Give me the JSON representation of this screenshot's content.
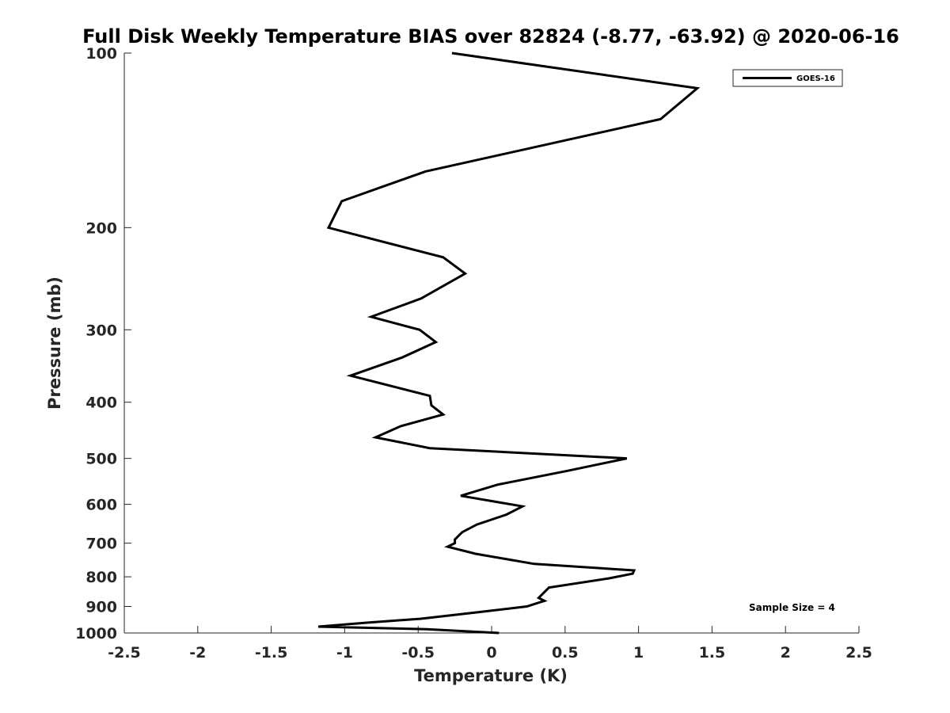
{
  "chart_data": {
    "type": "line",
    "title": "Full Disk Weekly Temperature BIAS over 82824 (-8.77, -63.92) @ 2020-06-16",
    "xlabel": "Temperature (K)",
    "ylabel": "Pressure (mb)",
    "xlim": [
      -2.5,
      2.5
    ],
    "ylim": [
      100,
      1000
    ],
    "y_scale": "log",
    "y_reversed": true,
    "x_ticks": [
      -2.5,
      -2,
      -1.5,
      -1,
      -0.5,
      0,
      0.5,
      1,
      1.5,
      2,
      2.5
    ],
    "x_tick_labels": [
      "-2.5",
      "-2",
      "-1.5",
      "-1",
      "-0.5",
      "0",
      "0.5",
      "1",
      "1.5",
      "2",
      "2.5"
    ],
    "y_ticks": [
      100,
      200,
      300,
      400,
      500,
      600,
      700,
      800,
      900,
      1000
    ],
    "y_tick_labels": [
      "100",
      "200",
      "300",
      "400",
      "500",
      "600",
      "700",
      "800",
      "900",
      "1000"
    ],
    "grid": false,
    "legend_position": "top-right",
    "annotation": "Sample Size = 4",
    "series": [
      {
        "name": "GOES-16",
        "color": "#000000",
        "x": [
          -0.27,
          1.4,
          1.15,
          -0.45,
          -1.02,
          -1.11,
          -0.33,
          -0.18,
          -0.48,
          -0.82,
          -0.49,
          -0.38,
          -0.61,
          -0.96,
          -0.42,
          -0.41,
          -0.33,
          -0.62,
          -0.79,
          -0.42,
          0.92,
          0.52,
          0.04,
          -0.21,
          0.21,
          0.1,
          -0.1,
          -0.2,
          -0.25,
          -0.25,
          -0.3,
          -0.11,
          0.29,
          0.97,
          0.96,
          0.8,
          0.39,
          0.32,
          0.36,
          0.24,
          -0.08,
          -0.48,
          -0.85,
          -1.18,
          -0.44,
          0.05
        ],
        "y": [
          100,
          115,
          130,
          160,
          180,
          200,
          225,
          240,
          265,
          285,
          300,
          315,
          335,
          360,
          390,
          405,
          420,
          440,
          460,
          480,
          500,
          525,
          555,
          580,
          605,
          625,
          650,
          670,
          690,
          700,
          710,
          730,
          760,
          780,
          790,
          805,
          835,
          870,
          880,
          900,
          920,
          945,
          960,
          975,
          985,
          1000
        ]
      }
    ]
  }
}
